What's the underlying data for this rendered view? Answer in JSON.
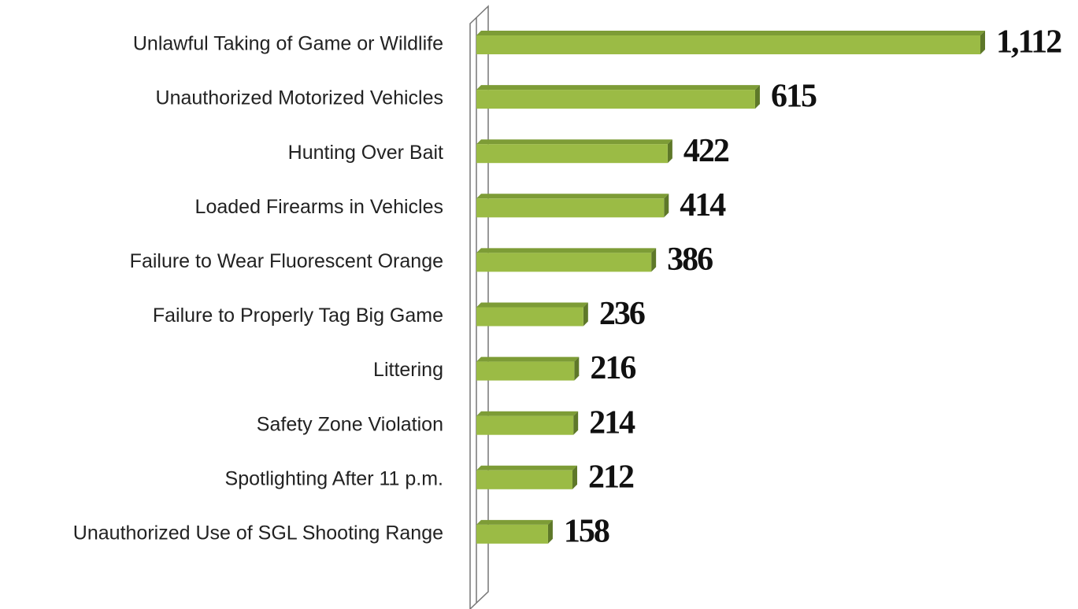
{
  "chart_data": {
    "type": "bar",
    "categories": [
      "Unlawful Taking of Game or Wildlife",
      "Unauthorized Motorized Vehicles",
      "Hunting Over Bait",
      "Loaded Firearms in Vehicles",
      "Failure to Wear Fluorescent Orange",
      "Failure to Properly Tag Big Game",
      "Littering",
      "Safety Zone Violation",
      "Spotlighting After 11 p.m.",
      "Unauthorized Use of SGL Shooting Range"
    ],
    "values": [
      1112,
      615,
      422,
      414,
      386,
      236,
      216,
      214,
      212,
      158
    ],
    "value_labels": [
      "1,112",
      "615",
      "422",
      "414",
      "386",
      "236",
      "216",
      "214",
      "212",
      "158"
    ],
    "color": "#9bbb45"
  }
}
